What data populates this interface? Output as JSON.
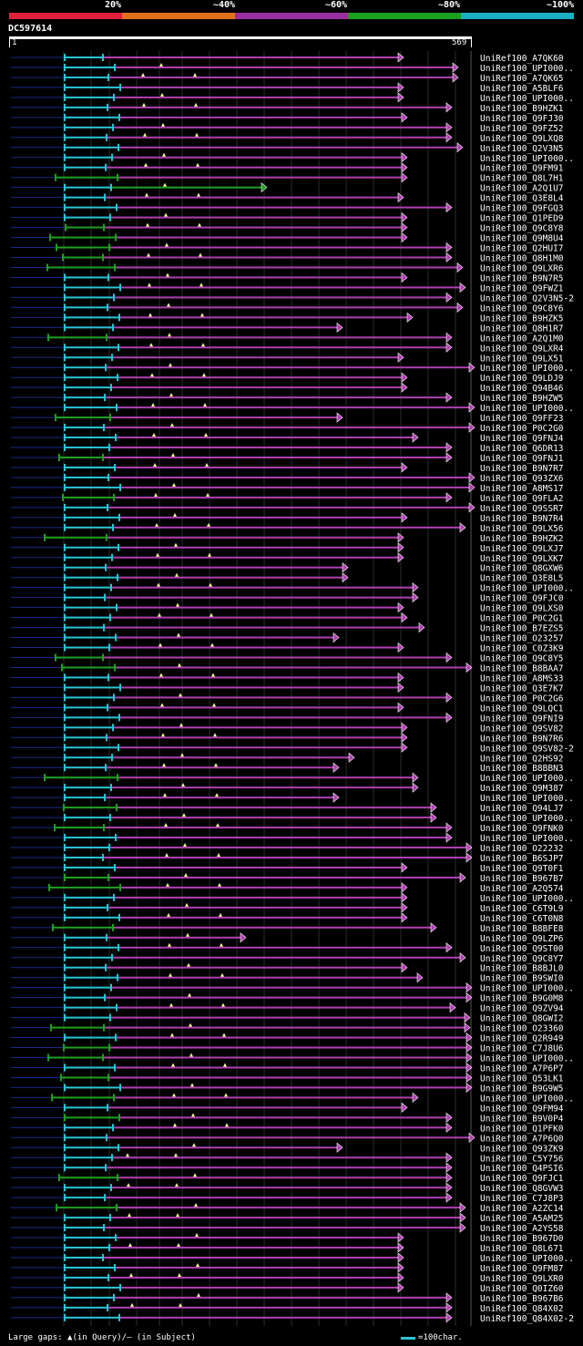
{
  "legend": {
    "labels": [
      "20%",
      "~40%",
      "~60%",
      "~80%",
      "~100%"
    ],
    "colors": [
      "#e0203a",
      "#e0701e",
      "#9a2ea0",
      "#1aa01a",
      "#1ab0c0"
    ]
  },
  "query": {
    "name": "DC597614",
    "start": "1",
    "end": "569"
  },
  "colors": {
    "purple": "#b040b0",
    "green": "#1fa01f",
    "cyan": "#29c4d4",
    "gap_line": "#1a2a88",
    "grid": "#2b2b2b",
    "marker": "#ffff99"
  },
  "icons": [
    "up-triangle-icon",
    "arrow-right-icon"
  ],
  "rows": [
    "UniRef100_A7QK60",
    "UniRef100_UPI000..",
    "UniRef100_A7QK65",
    "UniRef100_A5BLF6",
    "UniRef100_UPI000..",
    "UniRef100_B9HZK1",
    "UniRef100_Q9FJ30",
    "UniRef100_Q9FZ52",
    "UniRef100_Q9LXQ8",
    "UniRef100_Q2V3N5",
    "UniRef100_UPI000..",
    "UniRef100_Q9FM91",
    "UniRef100_Q8L7H1",
    "UniRef100_A2Q1U7",
    "UniRef100_Q3E8L4",
    "UniRef100_Q9FGQ3",
    "UniRef100_Q1PED9",
    "UniRef100_Q9C8Y8",
    "UniRef100_Q9M8U4",
    "UniRef100_Q2HUI7",
    "UniRef100_Q8H1M0",
    "UniRef100_Q9LXR6",
    "UniRef100_B9N7R5",
    "UniRef100_Q9FWZ1",
    "UniRef100_Q2V3N5-2",
    "UniRef100_Q9C8Y6",
    "UniRef100_B9HZK5",
    "UniRef100_Q8H1R7",
    "UniRef100_A2Q1M0",
    "UniRef100_Q9LXR4",
    "UniRef100_Q9LX51",
    "UniRef100_UPI000..",
    "UniRef100_Q9LDJ9",
    "UniRef100_Q94B46",
    "UniRef100_B9HZW5",
    "UniRef100_UPI000..",
    "UniRef100_Q9FF23",
    "UniRef100_P0C2G0",
    "UniRef100_Q9FNJ4",
    "UniRef100_Q6DR13",
    "UniRef100_Q9FNJ1",
    "UniRef100_B9N7R7",
    "UniRef100_Q93ZX6",
    "UniRef100_A8MS17",
    "UniRef100_Q9FLA2",
    "UniRef100_Q9SSR7",
    "UniRef100_B9N7R4",
    "UniRef100_Q9LX56",
    "UniRef100_B9HZK2",
    "UniRef100_Q9LXJ7",
    "UniRef100_Q9LXK7",
    "UniRef100_Q8GXW6",
    "UniRef100_Q3E8L5",
    "UniRef100_UPI000..",
    "UniRef100_Q9FJC0",
    "UniRef100_Q9LXS0",
    "UniRef100_P0C2G1",
    "UniRef100_B7EZS5",
    "UniRef100_O23257",
    "UniRef100_C0Z3K9",
    "UniRef100_Q9C8Y5",
    "UniRef100_B8BAA7",
    "UniRef100_A8MS33",
    "UniRef100_Q3E7K7",
    "UniRef100_P0C2G6",
    "UniRef100_Q9LQC1",
    "UniRef100_Q9FNI9",
    "UniRef100_Q9SV82",
    "UniRef100_B9N7R6",
    "UniRef100_Q9SV82-2",
    "UniRef100_Q2HS92",
    "UniRef100_B8BBN3",
    "UniRef100_UPI000..",
    "UniRef100_Q9M387",
    "UniRef100_UPI000..",
    "UniRef100_Q94LJ7",
    "UniRef100_UPI000..",
    "UniRef100_Q9FNK0",
    "UniRef100_UPI000..",
    "UniRef100_O22232",
    "UniRef100_B6SJP7",
    "UniRef100_Q9T0F1",
    "UniRef100_B967B7",
    "UniRef100_A2Q574",
    "UniRef100_UPI000..",
    "UniRef100_C6T9L9",
    "UniRef100_C6T0N8",
    "UniRef100_B8BFE8",
    "UniRef100_Q9LZP6",
    "UniRef100_Q9ST00",
    "UniRef100_Q9C8Y7",
    "UniRef100_B8BJL0",
    "UniRef100_B9SWI0",
    "UniRef100_UPI000..",
    "UniRef100_B9G0M8",
    "UniRef100_Q9ZV94",
    "UniRef100_Q8GWI2",
    "UniRef100_O23360",
    "UniRef100_Q2R949",
    "UniRef100_C7J8U6",
    "UniRef100_UPI000..",
    "UniRef100_A7P6P7",
    "UniRef100_Q53LK1",
    "UniRef100_B9G9W5",
    "UniRef100_UPI000..",
    "UniRef100_Q9FM94",
    "UniRef100_B9V0P4",
    "UniRef100_Q1PFK0",
    "UniRef100_A7P6Q0",
    "UniRef100_Q93ZK9",
    "UniRef100_C5Y756",
    "UniRef100_Q4PSI6",
    "UniRef100_Q9FJC1",
    "UniRef100_Q8GVW3",
    "UniRef100_C7J8P3",
    "UniRef100_A2ZC14",
    "UniRef100_A5AM25",
    "UniRef100_A2YS58",
    "UniRef100_B967D0",
    "UniRef100_Q8L671",
    "UniRef100_UPI000..",
    "UniRef100_Q9FM87",
    "UniRef100_Q9LXR0",
    "UniRef100_Q0IZ60",
    "UniRef100_B967B6",
    "UniRef100_Q84X02",
    "UniRef100_Q84X02-2"
  ],
  "footer": {
    "large_gaps_label": "Large gaps:",
    "query_gap_label": "(in Query)/",
    "subject_gap_symbol": "—",
    "subject_gap_label": " (in Subject)",
    "scale_label": "=100char."
  }
}
